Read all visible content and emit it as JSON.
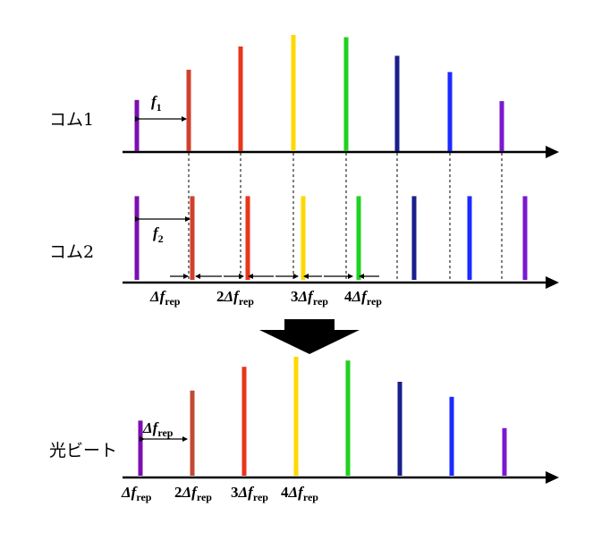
{
  "labels": {
    "comb1": "コム1",
    "comb2": "コム2",
    "beat": "光ビート"
  },
  "annotations": {
    "f1": "f",
    "f1_sub": "1",
    "f2": "f",
    "f2_sub": "2",
    "delta": "Δf",
    "rep": "rep",
    "mult2": "2",
    "mult3": "3",
    "mult4": "4"
  },
  "colors": {
    "lines": [
      "#7b0fb0",
      "#d0402c",
      "#e8361a",
      "#ffd800",
      "#1fd21f",
      "#1a1f8c",
      "#1a2bff",
      "#7b18d0"
    ],
    "beat_second": "#c24a34"
  },
  "comb1_relative_heights": [
    0.44,
    0.7,
    0.9,
    1.0,
    0.98,
    0.82,
    0.68,
    0.43
  ],
  "comb2_relative_heights": [
    0.72,
    0.72,
    0.72,
    0.72,
    0.72,
    0.72,
    0.72,
    0.72
  ],
  "beat_relative_heights": [
    0.44,
    0.68,
    0.87,
    0.95,
    0.92,
    0.75,
    0.63,
    0.38
  ]
}
